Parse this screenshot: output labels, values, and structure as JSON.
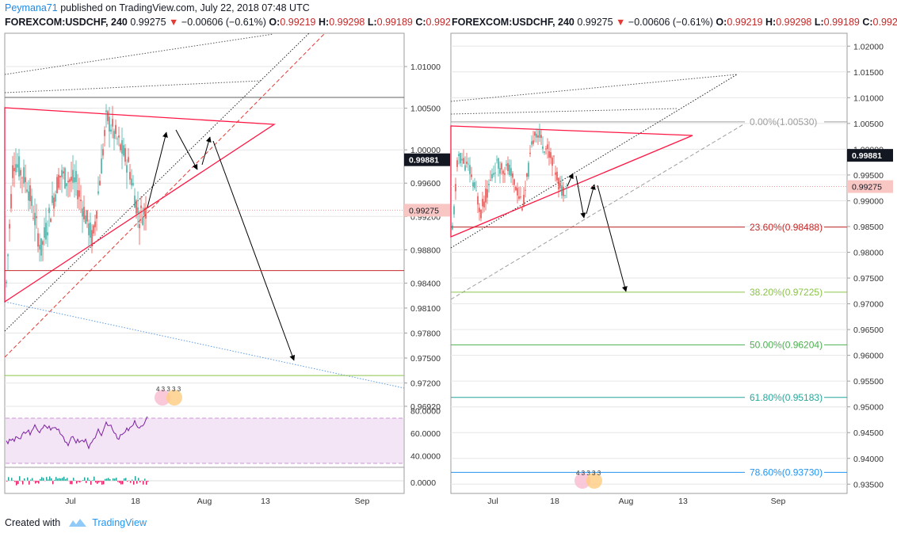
{
  "header": {
    "author": "Peymana71",
    "published": " published on TradingView.com, July 22, 2018 07:48 UTC"
  },
  "footer": {
    "created_with": "Created with",
    "brand": "TradingView"
  },
  "ticker_left": {
    "symbol": "FOREXCOM:USDCHF, 240",
    "price": "0.99275",
    "change": "−0.00606 (−0.61%)",
    "o_label": "O:",
    "o": "0.99219",
    "h_label": "H:",
    "h": "0.99298",
    "l_label": "L:",
    "l": "0.99189",
    "c_label": "C:",
    "c": "0.992"
  },
  "ticker_right": {
    "symbol": "FOREXCOM:USDCHF, 240",
    "price": "0.99275",
    "change": "−0.00606 (−0.61%)",
    "o_label": "O:",
    "o": "0.99219",
    "h_label": "H:",
    "h": "0.99298",
    "l_label": "L:",
    "l": "0.99189",
    "c_label": "C:",
    "c": "0.992"
  },
  "colors": {
    "up": "#26a69a",
    "down": "#e53935",
    "triangle": "#ff1744",
    "grid": "#e6e6e6",
    "price_tag": "#ef9a9a",
    "last_tag": "#131722",
    "rsi_fill": "#f3e5f5",
    "rsi_line": "#7b1fa2"
  },
  "chart_data": [
    {
      "type": "candlestick",
      "name": "left-main",
      "x_tick_labels": [
        "Jul",
        "18",
        "Aug",
        "13",
        "Sep"
      ],
      "y_tick_labels": [
        "1.01000",
        "1.00500",
        "1.00000",
        "0.99600",
        "0.99200",
        "0.98800",
        "0.98400",
        "0.98100",
        "0.97800",
        "0.97500",
        "0.97200",
        "0.96920"
      ],
      "y_ticks": [
        1.01,
        1.005,
        1.0,
        0.996,
        0.992,
        0.988,
        0.984,
        0.981,
        0.978,
        0.975,
        0.972,
        0.9692
      ],
      "ylim": [
        0.9692,
        1.014
      ],
      "last_price_tag": "0.99881",
      "current_price_tag": "0.99275",
      "last_price": 0.99881,
      "current_price": 0.99275,
      "horizontal_levels": [
        1.0063,
        0.9855,
        0.9729
      ]
    },
    {
      "type": "line",
      "name": "left-rsi",
      "y_tick_labels": [
        "80.0000",
        "60.0000",
        "40.0000"
      ],
      "y_ticks": [
        80,
        60,
        40
      ],
      "ylim": [
        30,
        84
      ]
    },
    {
      "type": "bar",
      "name": "left-macd",
      "y_tick_labels": [
        "0.0000"
      ],
      "y_ticks": [
        0
      ]
    },
    {
      "type": "candlestick",
      "name": "right-main",
      "x_tick_labels": [
        "Jul",
        "18",
        "Aug",
        "13",
        "Sep"
      ],
      "y_tick_labels": [
        "1.02000",
        "1.01500",
        "1.01000",
        "1.00500",
        "1.00000",
        "0.99500",
        "0.99000",
        "0.98500",
        "0.98000",
        "0.97500",
        "0.97000",
        "0.96500",
        "0.96000",
        "0.95500",
        "0.95000",
        "0.94500",
        "0.94000",
        "0.93500"
      ],
      "y_ticks": [
        1.02,
        1.015,
        1.01,
        1.005,
        1.0,
        0.995,
        0.99,
        0.985,
        0.98,
        0.975,
        0.97,
        0.965,
        0.96,
        0.955,
        0.95,
        0.945,
        0.94,
        0.935
      ],
      "ylim": [
        0.9332,
        1.0225
      ],
      "last_price_tag": "0.99881",
      "current_price_tag": "0.99275",
      "last_price": 0.99881,
      "current_price": 0.99275,
      "fibonacci": [
        {
          "label": "0.00%(1.00530)",
          "value": 1.0053,
          "color": "#9e9e9e"
        },
        {
          "label": "23.60%(0.98488)",
          "value": 0.98488,
          "color": "#c62828"
        },
        {
          "label": "38.20%(0.97225)",
          "value": 0.97225,
          "color": "#8bc34a"
        },
        {
          "label": "50.00%(0.96204)",
          "value": 0.96204,
          "color": "#4caf50"
        },
        {
          "label": "61.80%(0.95183)",
          "value": 0.95183,
          "color": "#26a69a"
        },
        {
          "label": "78.60%(0.93730)",
          "value": 0.9373,
          "color": "#2196f3"
        }
      ]
    }
  ]
}
